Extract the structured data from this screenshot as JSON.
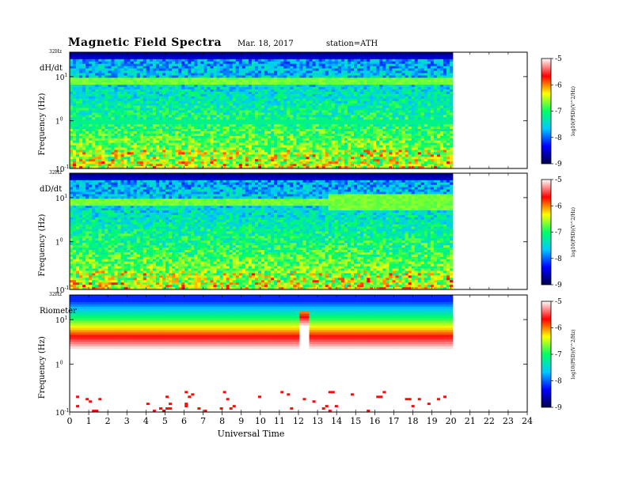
{
  "header": {
    "title": "Magnetic  Field  Spectra",
    "date": "Mar. 18, 2017",
    "station": "station=ATH"
  },
  "chart_data": [
    {
      "type": "heatmap",
      "panel_label": "dH/dt",
      "ylabel": "Frequency  (Hz)",
      "top_label": "32Hz",
      "y_ticks": [
        "10",
        "1",
        "10"
      ],
      "y_tick_exps": [
        "1",
        "0",
        "-1"
      ],
      "x_range": [
        0,
        24
      ],
      "data_end_hour": 20.1,
      "colorbar": {
        "label": "log10(PSD)(V^2/Hz)",
        "ticks": [
          "-5",
          "-6",
          "-7",
          "-8",
          "-9"
        ],
        "range": [
          -9,
          -5
        ]
      },
      "features": "strong line near 8 Hz, weaker line near 1 Hz, noisy green floor below 0.3 Hz"
    },
    {
      "type": "heatmap",
      "panel_label": "dD/dt",
      "ylabel": "Frequency  (Hz)",
      "top_label": "32Hz",
      "y_ticks": [
        "10",
        "1",
        "10"
      ],
      "y_tick_exps": [
        "1",
        "0",
        "-1"
      ],
      "x_range": [
        0,
        24
      ],
      "data_end_hour": 20.1,
      "colorbar": {
        "label": "log10(PSD)(V^2/Hz)",
        "ticks": [
          "-5",
          "-6",
          "-7",
          "-8",
          "-9"
        ],
        "range": [
          -9,
          -5
        ]
      },
      "features": "line near 8 Hz widening after 13.5 UT, noisy floor below 0.3 Hz"
    },
    {
      "type": "heatmap",
      "panel_label": "Riometer",
      "ylabel": "Frequency  (Hz)",
      "top_label": "32Hz",
      "y_ticks": [
        "10",
        "1",
        "10"
      ],
      "y_tick_exps": [
        "1",
        "0",
        "-1"
      ],
      "x_range": [
        0,
        24
      ],
      "data_end_hour": 20.1,
      "colorbar": {
        "label": "log10(PSD)(V^2/Hz)",
        "ticks": [
          "-5",
          "-6",
          "-7",
          "-8",
          "-9"
        ],
        "range": [
          -9,
          -5
        ]
      },
      "features": "blue-to-red gradient above ~5 Hz, notch at 12.3 UT, sparse red speckle below 0.3 Hz"
    }
  ],
  "x_axis": {
    "label": "Universal  Time",
    "ticks": [
      "0",
      "1",
      "2",
      "3",
      "4",
      "5",
      "6",
      "7",
      "8",
      "9",
      "10",
      "11",
      "12",
      "13",
      "14",
      "15",
      "16",
      "17",
      "18",
      "19",
      "20",
      "21",
      "22",
      "23",
      "24"
    ]
  },
  "colors": {
    "cmap": [
      "#00004a",
      "#0000ff",
      "#00c8ff",
      "#00ff64",
      "#ffff00",
      "#ff0000",
      "#ffffff"
    ]
  }
}
